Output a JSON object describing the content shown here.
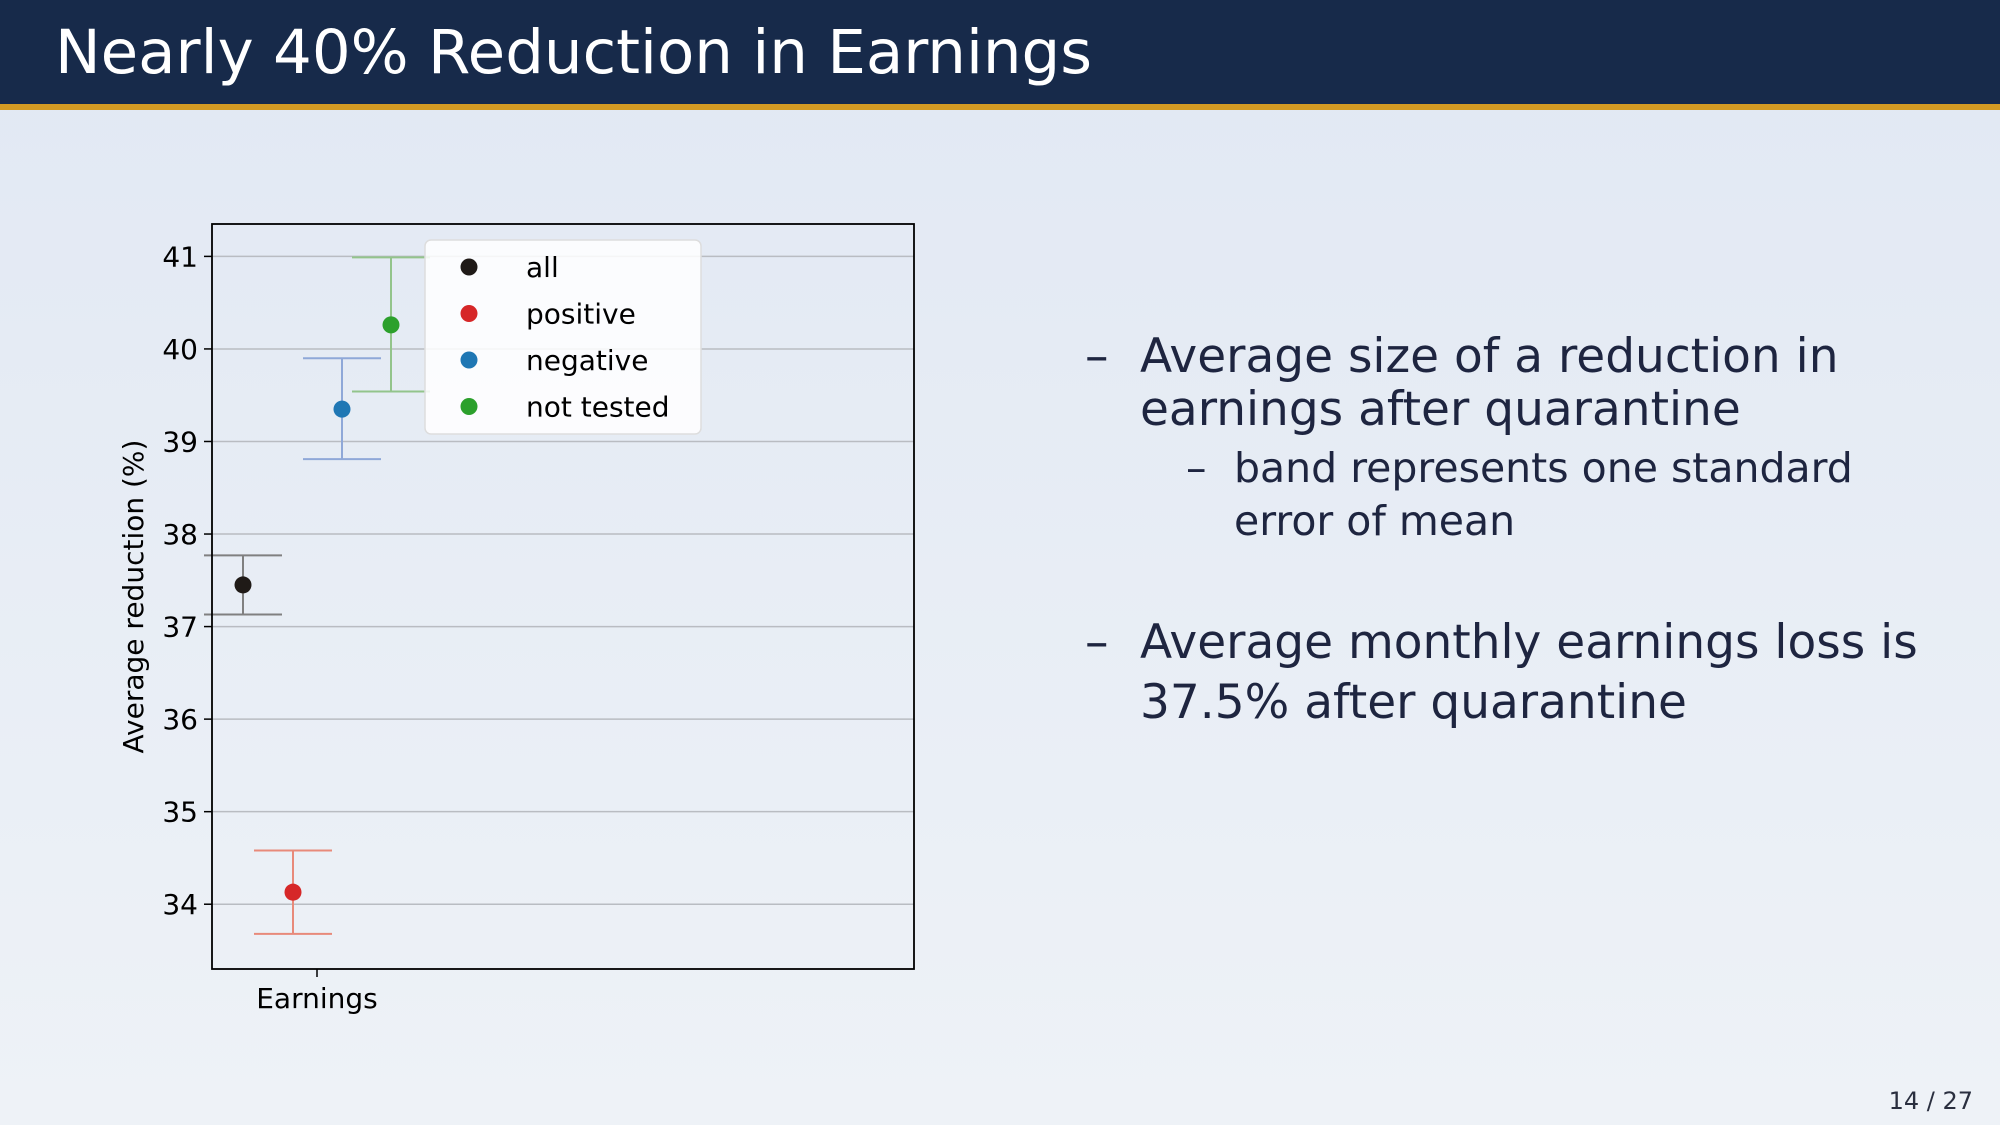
{
  "slide": {
    "title": "Nearly 40% Reduction in Earnings",
    "page_number": "14 / 27",
    "bullets": [
      {
        "text": "Average size of a reduction in earnings after quarantine",
        "sub": [
          "band represents one standard error of mean"
        ]
      },
      {
        "text": "Average monthly earnings loss is 37.5% after quarantine",
        "sub": []
      }
    ],
    "dash": "–",
    "colors": {
      "header_bg": "#172a4a",
      "header_rule": "#d49a23"
    }
  },
  "chart_data": {
    "type": "scatter",
    "subtype": "errorbar",
    "title": "",
    "xlabel": "",
    "ylabel": "Average reduction (%)",
    "categories": [
      "Earnings"
    ],
    "ylim": [
      33.3,
      41.35
    ],
    "yticks": [
      34,
      35,
      36,
      37,
      38,
      39,
      40,
      41
    ],
    "grid": "y",
    "legend_position": "top-center",
    "series": [
      {
        "name": "all",
        "color": "#1f1a17",
        "bar_color": "#808080",
        "value": 37.45,
        "lower": 37.13,
        "upper": 37.77
      },
      {
        "name": "positive",
        "color": "#d62728",
        "bar_color": "#e88a7a",
        "value": 34.13,
        "lower": 33.68,
        "upper": 34.58
      },
      {
        "name": "negative",
        "color": "#1f77b4",
        "bar_color": "#8fa8d8",
        "value": 39.35,
        "lower": 38.81,
        "upper": 39.9
      },
      {
        "name": "not tested",
        "color": "#2ca02c",
        "bar_color": "#93c48b",
        "value": 40.26,
        "lower": 39.54,
        "upper": 40.99
      }
    ]
  }
}
